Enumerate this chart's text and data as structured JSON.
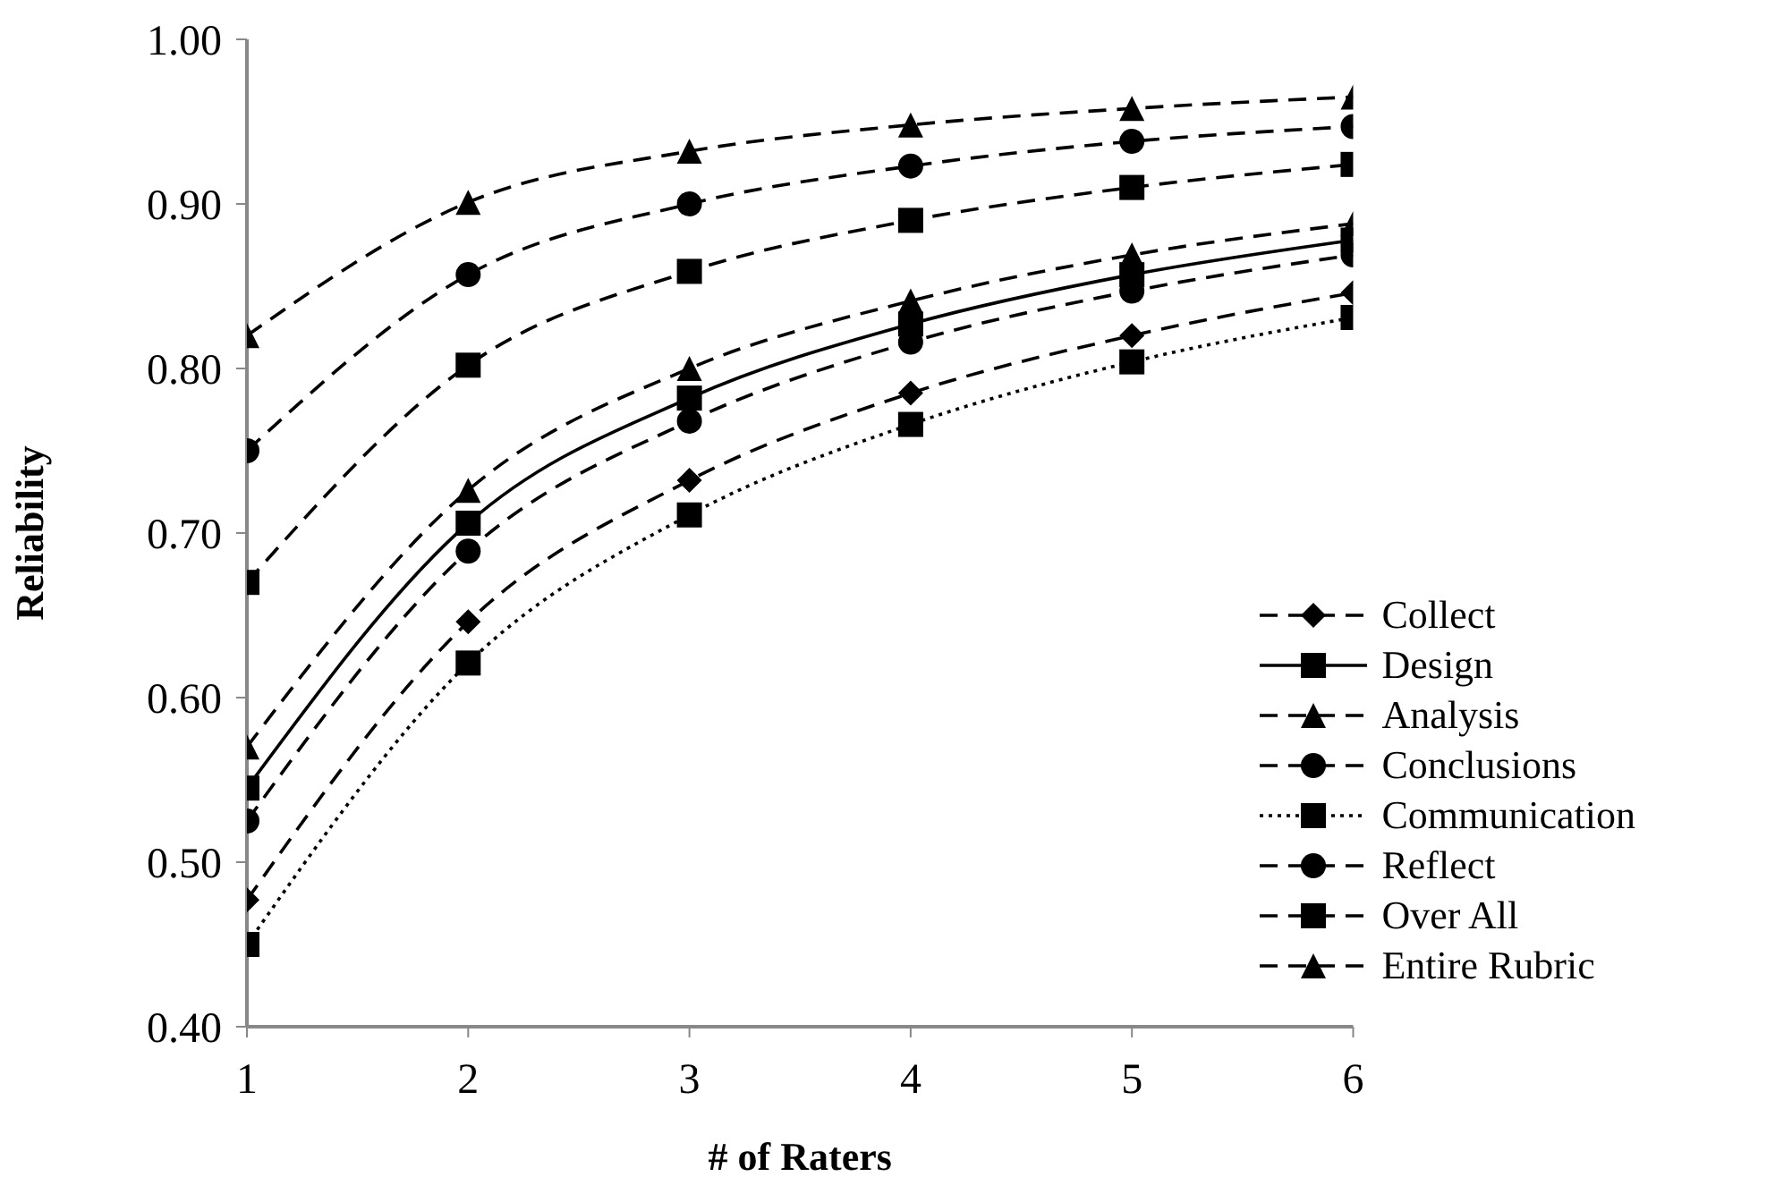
{
  "chart_data": {
    "type": "line",
    "xlabel": "# of Raters",
    "ylabel": "Reliability",
    "x": [
      1,
      2,
      3,
      4,
      5,
      6
    ],
    "xlim": [
      1,
      6
    ],
    "xticks": [
      1,
      2,
      3,
      4,
      5,
      6
    ],
    "ylim": [
      0.4,
      1.0
    ],
    "yticks": [
      {
        "value": 0.4,
        "label": "0.40"
      },
      {
        "value": 0.5,
        "label": "0.50"
      },
      {
        "value": 0.6,
        "label": "0.60"
      },
      {
        "value": 0.7,
        "label": "0.70"
      },
      {
        "value": 0.8,
        "label": "0.80"
      },
      {
        "value": 0.9,
        "label": "0.90"
      },
      {
        "value": 1.0,
        "label": "1.00"
      }
    ],
    "grid": false,
    "legend": "bottom right",
    "series": [
      {
        "name": "Collect",
        "color": "#000000",
        "marker": "diamond",
        "line_style": "dashed",
        "values": [
          0.477,
          0.646,
          0.732,
          0.785,
          0.82,
          0.846
        ]
      },
      {
        "name": "Design",
        "color": "#000000",
        "marker": "square",
        "line_style": "solid",
        "values": [
          0.545,
          0.706,
          0.782,
          0.827,
          0.857,
          0.878
        ]
      },
      {
        "name": "Analysis",
        "color": "#000000",
        "marker": "triangle",
        "line_style": "dashed",
        "values": [
          0.57,
          0.726,
          0.8,
          0.841,
          0.869,
          0.888
        ]
      },
      {
        "name": "Conclusions",
        "color": "#000000",
        "marker": "circle",
        "line_style": "dashed",
        "values": [
          0.525,
          0.689,
          0.768,
          0.816,
          0.847,
          0.869
        ]
      },
      {
        "name": "Communication",
        "color": "#000000",
        "marker": "square",
        "line_style": "dotted",
        "values": [
          0.45,
          0.621,
          0.711,
          0.766,
          0.804,
          0.831
        ]
      },
      {
        "name": "Reflect",
        "color": "#000000",
        "marker": "circle",
        "line_style": "dashed",
        "values": [
          0.75,
          0.857,
          0.9,
          0.923,
          0.938,
          0.947
        ]
      },
      {
        "name": "Over All",
        "color": "#000000",
        "marker": "square",
        "line_style": "dashed",
        "values": [
          0.67,
          0.802,
          0.859,
          0.89,
          0.91,
          0.924
        ]
      },
      {
        "name": "Entire Rubric",
        "color": "#000000",
        "marker": "triangle",
        "line_style": "dashed",
        "values": [
          0.82,
          0.901,
          0.932,
          0.948,
          0.958,
          0.965
        ]
      }
    ]
  }
}
